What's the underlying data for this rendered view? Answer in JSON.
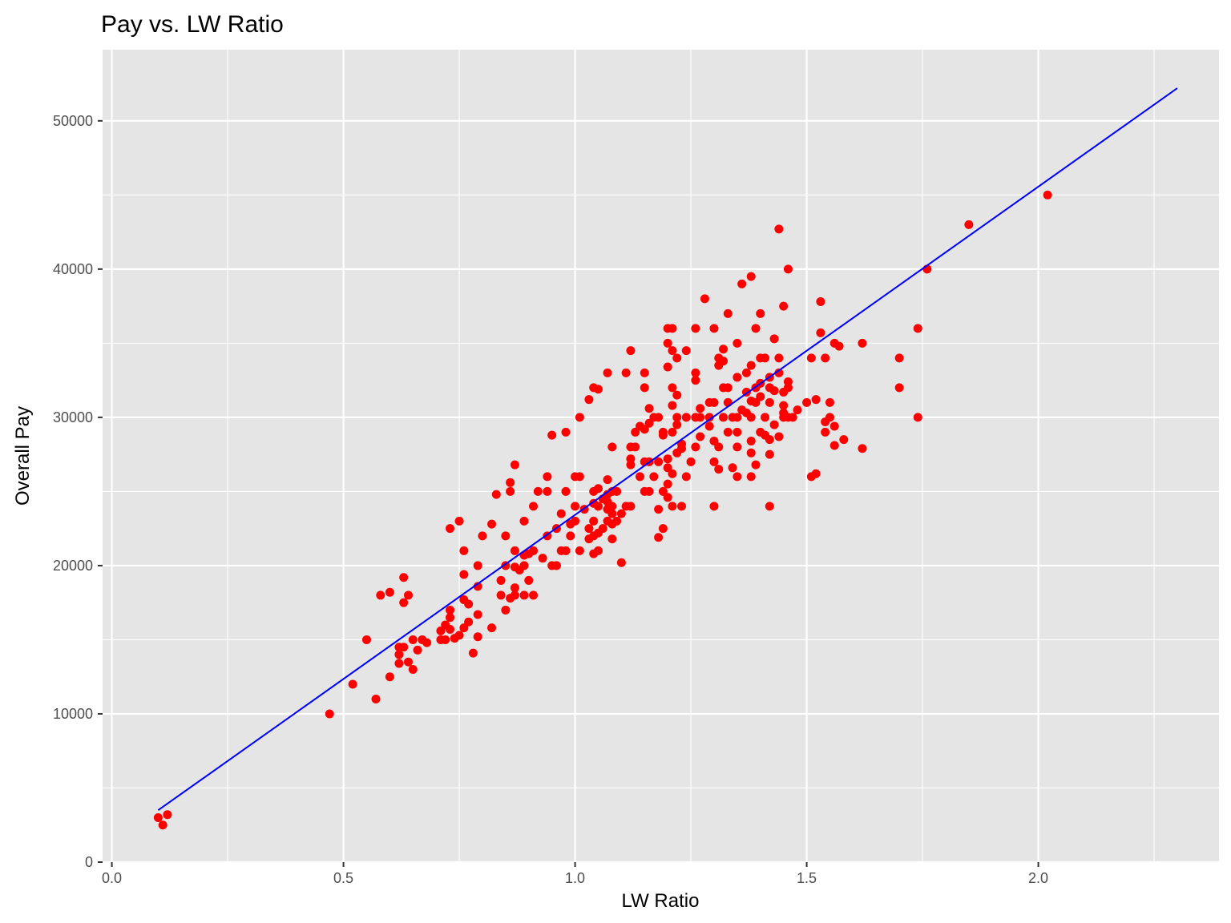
{
  "chart_data": {
    "type": "scatter",
    "title": "Pay vs. LW Ratio",
    "xlabel": "LW Ratio",
    "ylabel": "Overall Pay",
    "xlim": [
      -0.02,
      2.39
    ],
    "ylim": [
      0,
      54800
    ],
    "x_ticks": [
      0.0,
      0.5,
      1.0,
      1.5,
      2.0
    ],
    "x_tick_labels": [
      "0.0",
      "0.5",
      "1.0",
      "1.5",
      "2.0"
    ],
    "y_ticks": [
      0,
      10000,
      20000,
      30000,
      40000,
      50000
    ],
    "y_tick_labels": [
      "0",
      "10000",
      "20000",
      "30000",
      "40000",
      "50000"
    ],
    "grid": true,
    "colors": {
      "panel_background": "#e5e5e5",
      "grid": "#ffffff",
      "points": "#ff0000",
      "trend_line": "#0000ff"
    },
    "trend_line": {
      "x": [
        0.1,
        2.3
      ],
      "y": [
        3500,
        52200
      ]
    },
    "points": [
      [
        0.1,
        3000
      ],
      [
        0.11,
        2500
      ],
      [
        0.12,
        3200
      ],
      [
        0.47,
        10000
      ],
      [
        0.52,
        12000
      ],
      [
        0.55,
        15000
      ],
      [
        0.57,
        11000
      ],
      [
        0.58,
        18000
      ],
      [
        0.6,
        18200
      ],
      [
        0.6,
        12500
      ],
      [
        0.62,
        14000
      ],
      [
        0.62,
        13400
      ],
      [
        0.62,
        14500
      ],
      [
        0.63,
        19200
      ],
      [
        0.63,
        17500
      ],
      [
        0.63,
        14500
      ],
      [
        0.64,
        18000
      ],
      [
        0.64,
        13500
      ],
      [
        0.65,
        15000
      ],
      [
        0.65,
        13000
      ],
      [
        0.66,
        14300
      ],
      [
        0.67,
        15000
      ],
      [
        0.68,
        14800
      ],
      [
        0.71,
        15600
      ],
      [
        0.71,
        15000
      ],
      [
        0.72,
        16000
      ],
      [
        0.72,
        15000
      ],
      [
        0.73,
        22500
      ],
      [
        0.73,
        17000
      ],
      [
        0.73,
        16500
      ],
      [
        0.73,
        15700
      ],
      [
        0.74,
        15100
      ],
      [
        0.75,
        23000
      ],
      [
        0.75,
        15300
      ],
      [
        0.76,
        21000
      ],
      [
        0.76,
        19400
      ],
      [
        0.76,
        17700
      ],
      [
        0.76,
        15800
      ],
      [
        0.77,
        17400
      ],
      [
        0.77,
        16200
      ],
      [
        0.78,
        14100
      ],
      [
        0.79,
        18600
      ],
      [
        0.79,
        16700
      ],
      [
        0.79,
        15200
      ],
      [
        0.79,
        20000
      ],
      [
        0.8,
        22000
      ],
      [
        0.82,
        22800
      ],
      [
        0.82,
        15800
      ],
      [
        0.83,
        24800
      ],
      [
        0.84,
        19000
      ],
      [
        0.84,
        18000
      ],
      [
        0.85,
        22000
      ],
      [
        0.85,
        20000
      ],
      [
        0.85,
        17000
      ],
      [
        0.86,
        25600
      ],
      [
        0.86,
        25000
      ],
      [
        0.86,
        17800
      ],
      [
        0.87,
        26800
      ],
      [
        0.87,
        21000
      ],
      [
        0.87,
        19900
      ],
      [
        0.87,
        18500
      ],
      [
        0.87,
        18000
      ],
      [
        0.88,
        19700
      ],
      [
        0.89,
        23000
      ],
      [
        0.89,
        20700
      ],
      [
        0.89,
        20000
      ],
      [
        0.89,
        18000
      ],
      [
        0.9,
        20800
      ],
      [
        0.9,
        19000
      ],
      [
        0.91,
        24000
      ],
      [
        0.91,
        21000
      ],
      [
        0.91,
        18000
      ],
      [
        0.92,
        25000
      ],
      [
        0.93,
        20500
      ],
      [
        0.94,
        26000
      ],
      [
        0.94,
        25000
      ],
      [
        0.94,
        22000
      ],
      [
        0.95,
        28800
      ],
      [
        0.95,
        20000
      ],
      [
        0.96,
        22500
      ],
      [
        0.96,
        20000
      ],
      [
        0.97,
        23500
      ],
      [
        0.97,
        21000
      ],
      [
        0.98,
        29000
      ],
      [
        0.98,
        25000
      ],
      [
        0.98,
        21000
      ],
      [
        0.99,
        22800
      ],
      [
        0.99,
        22000
      ],
      [
        1.0,
        26000
      ],
      [
        1.0,
        24000
      ],
      [
        1.0,
        23000
      ],
      [
        1.01,
        30000
      ],
      [
        1.01,
        26000
      ],
      [
        1.01,
        21000
      ],
      [
        1.02,
        23800
      ],
      [
        1.03,
        31200
      ],
      [
        1.03,
        22500
      ],
      [
        1.03,
        21800
      ],
      [
        1.04,
        32000
      ],
      [
        1.04,
        25000
      ],
      [
        1.04,
        24200
      ],
      [
        1.04,
        23000
      ],
      [
        1.04,
        22000
      ],
      [
        1.04,
        20800
      ],
      [
        1.05,
        31900
      ],
      [
        1.05,
        25200
      ],
      [
        1.05,
        24000
      ],
      [
        1.05,
        22200
      ],
      [
        1.05,
        21000
      ],
      [
        1.06,
        22500
      ],
      [
        1.06,
        24500
      ],
      [
        1.07,
        33000
      ],
      [
        1.07,
        25800
      ],
      [
        1.07,
        24800
      ],
      [
        1.07,
        24300
      ],
      [
        1.07,
        23800
      ],
      [
        1.07,
        23000
      ],
      [
        1.08,
        28000
      ],
      [
        1.08,
        25000
      ],
      [
        1.08,
        24000
      ],
      [
        1.08,
        23500
      ],
      [
        1.08,
        22800
      ],
      [
        1.08,
        21800
      ],
      [
        1.09,
        25000
      ],
      [
        1.09,
        23000
      ],
      [
        1.1,
        23500
      ],
      [
        1.1,
        20200
      ],
      [
        1.11,
        33000
      ],
      [
        1.11,
        24000
      ],
      [
        1.12,
        34500
      ],
      [
        1.12,
        28000
      ],
      [
        1.12,
        27200
      ],
      [
        1.12,
        26800
      ],
      [
        1.12,
        24000
      ],
      [
        1.13,
        29000
      ],
      [
        1.13,
        28000
      ],
      [
        1.14,
        29400
      ],
      [
        1.14,
        26000
      ],
      [
        1.15,
        33000
      ],
      [
        1.15,
        32000
      ],
      [
        1.15,
        29200
      ],
      [
        1.15,
        27000
      ],
      [
        1.15,
        25000
      ],
      [
        1.16,
        30600
      ],
      [
        1.16,
        29600
      ],
      [
        1.16,
        27000
      ],
      [
        1.16,
        25000
      ],
      [
        1.17,
        30000
      ],
      [
        1.17,
        26000
      ],
      [
        1.18,
        30000
      ],
      [
        1.18,
        23800
      ],
      [
        1.18,
        21900
      ],
      [
        1.18,
        27000
      ],
      [
        1.19,
        29000
      ],
      [
        1.19,
        28800
      ],
      [
        1.19,
        25000
      ],
      [
        1.19,
        22500
      ],
      [
        1.2,
        36000
      ],
      [
        1.2,
        35000
      ],
      [
        1.2,
        33400
      ],
      [
        1.2,
        27200
      ],
      [
        1.2,
        26600
      ],
      [
        1.2,
        25500
      ],
      [
        1.2,
        24600
      ],
      [
        1.21,
        36000
      ],
      [
        1.21,
        34500
      ],
      [
        1.21,
        32000
      ],
      [
        1.21,
        30800
      ],
      [
        1.21,
        29000
      ],
      [
        1.21,
        26200
      ],
      [
        1.21,
        24000
      ],
      [
        1.22,
        34000
      ],
      [
        1.22,
        31500
      ],
      [
        1.22,
        30000
      ],
      [
        1.22,
        29500
      ],
      [
        1.22,
        27600
      ],
      [
        1.23,
        28200
      ],
      [
        1.23,
        27900
      ],
      [
        1.23,
        24000
      ],
      [
        1.24,
        34500
      ],
      [
        1.24,
        30000
      ],
      [
        1.24,
        26000
      ],
      [
        1.25,
        27000
      ],
      [
        1.26,
        36000
      ],
      [
        1.26,
        33000
      ],
      [
        1.26,
        32500
      ],
      [
        1.26,
        30000
      ],
      [
        1.26,
        28000
      ],
      [
        1.27,
        30600
      ],
      [
        1.27,
        30000
      ],
      [
        1.27,
        28700
      ],
      [
        1.28,
        38000
      ],
      [
        1.29,
        31000
      ],
      [
        1.29,
        30000
      ],
      [
        1.29,
        29400
      ],
      [
        1.3,
        36000
      ],
      [
        1.3,
        31000
      ],
      [
        1.3,
        28400
      ],
      [
        1.3,
        27000
      ],
      [
        1.3,
        24000
      ],
      [
        1.31,
        34000
      ],
      [
        1.31,
        33500
      ],
      [
        1.31,
        28000
      ],
      [
        1.31,
        26500
      ],
      [
        1.32,
        34600
      ],
      [
        1.32,
        33800
      ],
      [
        1.32,
        32000
      ],
      [
        1.32,
        30000
      ],
      [
        1.33,
        37000
      ],
      [
        1.33,
        32000
      ],
      [
        1.33,
        31000
      ],
      [
        1.33,
        29000
      ],
      [
        1.34,
        30000
      ],
      [
        1.34,
        26600
      ],
      [
        1.35,
        35000
      ],
      [
        1.35,
        32700
      ],
      [
        1.35,
        30000
      ],
      [
        1.35,
        29000
      ],
      [
        1.35,
        28000
      ],
      [
        1.35,
        26000
      ],
      [
        1.36,
        39000
      ],
      [
        1.36,
        30500
      ],
      [
        1.37,
        33000
      ],
      [
        1.37,
        31700
      ],
      [
        1.37,
        30300
      ],
      [
        1.38,
        39500
      ],
      [
        1.38,
        33500
      ],
      [
        1.38,
        31100
      ],
      [
        1.38,
        30000
      ],
      [
        1.38,
        28400
      ],
      [
        1.38,
        27600
      ],
      [
        1.38,
        26000
      ],
      [
        1.39,
        36000
      ],
      [
        1.39,
        32000
      ],
      [
        1.39,
        31000
      ],
      [
        1.39,
        26800
      ],
      [
        1.4,
        37000
      ],
      [
        1.4,
        34000
      ],
      [
        1.4,
        32300
      ],
      [
        1.4,
        31400
      ],
      [
        1.4,
        29000
      ],
      [
        1.41,
        34000
      ],
      [
        1.41,
        30000
      ],
      [
        1.41,
        28800
      ],
      [
        1.42,
        32700
      ],
      [
        1.42,
        32000
      ],
      [
        1.42,
        31000
      ],
      [
        1.42,
        28500
      ],
      [
        1.42,
        27500
      ],
      [
        1.42,
        24000
      ],
      [
        1.43,
        35300
      ],
      [
        1.43,
        31800
      ],
      [
        1.43,
        29500
      ],
      [
        1.44,
        42700
      ],
      [
        1.44,
        34000
      ],
      [
        1.44,
        33000
      ],
      [
        1.44,
        28700
      ],
      [
        1.45,
        37500
      ],
      [
        1.45,
        31700
      ],
      [
        1.45,
        30800
      ],
      [
        1.45,
        30300
      ],
      [
        1.45,
        30000
      ],
      [
        1.46,
        40000
      ],
      [
        1.46,
        32400
      ],
      [
        1.46,
        32000
      ],
      [
        1.46,
        30000
      ],
      [
        1.47,
        30000
      ],
      [
        1.48,
        30500
      ],
      [
        1.5,
        31000
      ],
      [
        1.51,
        34000
      ],
      [
        1.51,
        26000
      ],
      [
        1.52,
        31200
      ],
      [
        1.52,
        26200
      ],
      [
        1.53,
        37800
      ],
      [
        1.53,
        35700
      ],
      [
        1.54,
        34000
      ],
      [
        1.54,
        29700
      ],
      [
        1.54,
        29000
      ],
      [
        1.55,
        31000
      ],
      [
        1.55,
        30000
      ],
      [
        1.56,
        35000
      ],
      [
        1.56,
        29400
      ],
      [
        1.56,
        28100
      ],
      [
        1.57,
        34800
      ],
      [
        1.58,
        28500
      ],
      [
        1.62,
        35000
      ],
      [
        1.62,
        27900
      ],
      [
        1.7,
        34000
      ],
      [
        1.7,
        32000
      ],
      [
        1.74,
        36000
      ],
      [
        1.74,
        30000
      ],
      [
        1.76,
        40000
      ],
      [
        1.85,
        43000
      ],
      [
        2.02,
        45000
      ]
    ]
  }
}
